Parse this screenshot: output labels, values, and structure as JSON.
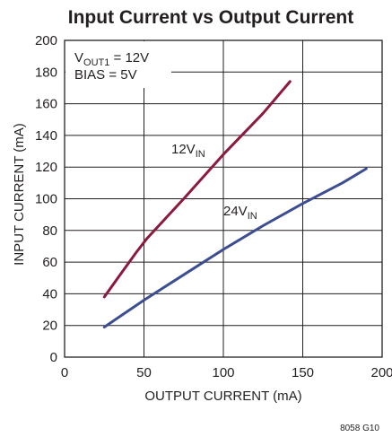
{
  "chart_data": {
    "type": "line",
    "title": "Input Current vs Output Current",
    "xlabel": "OUTPUT CURRENT (mA)",
    "ylabel": "INPUT CURRENT (mA)",
    "xlim": [
      0,
      200
    ],
    "ylim": [
      0,
      200
    ],
    "x_ticks": [
      0,
      50,
      100,
      150,
      200
    ],
    "y_ticks": [
      0,
      20,
      40,
      60,
      80,
      100,
      120,
      140,
      160,
      180,
      200
    ],
    "grid": true,
    "conditions": [
      {
        "parts": [
          {
            "text": "V"
          },
          {
            "text": "OUT1",
            "sub": true
          },
          {
            "text": " = 12V"
          }
        ]
      },
      {
        "parts": [
          {
            "text": "BIAS = 5V"
          }
        ]
      }
    ],
    "series": [
      {
        "label_parts": [
          {
            "text": "12V"
          },
          {
            "text": "IN",
            "sub": true
          }
        ],
        "color": "#8b1a3c",
        "points": [
          [
            25,
            38
          ],
          [
            35,
            52
          ],
          [
            45,
            66
          ],
          [
            52,
            75
          ],
          [
            75,
            100
          ],
          [
            100,
            128
          ],
          [
            125,
            154
          ],
          [
            142,
            174
          ]
        ]
      },
      {
        "label_parts": [
          {
            "text": "24V"
          },
          {
            "text": "IN",
            "sub": true
          }
        ],
        "color": "#3c4d92",
        "points": [
          [
            25,
            19
          ],
          [
            50,
            36
          ],
          [
            75,
            52
          ],
          [
            100,
            68
          ],
          [
            125,
            83
          ],
          [
            150,
            97
          ],
          [
            175,
            110
          ],
          [
            190,
            119
          ]
        ]
      }
    ],
    "figure_code": "8058 G10"
  }
}
